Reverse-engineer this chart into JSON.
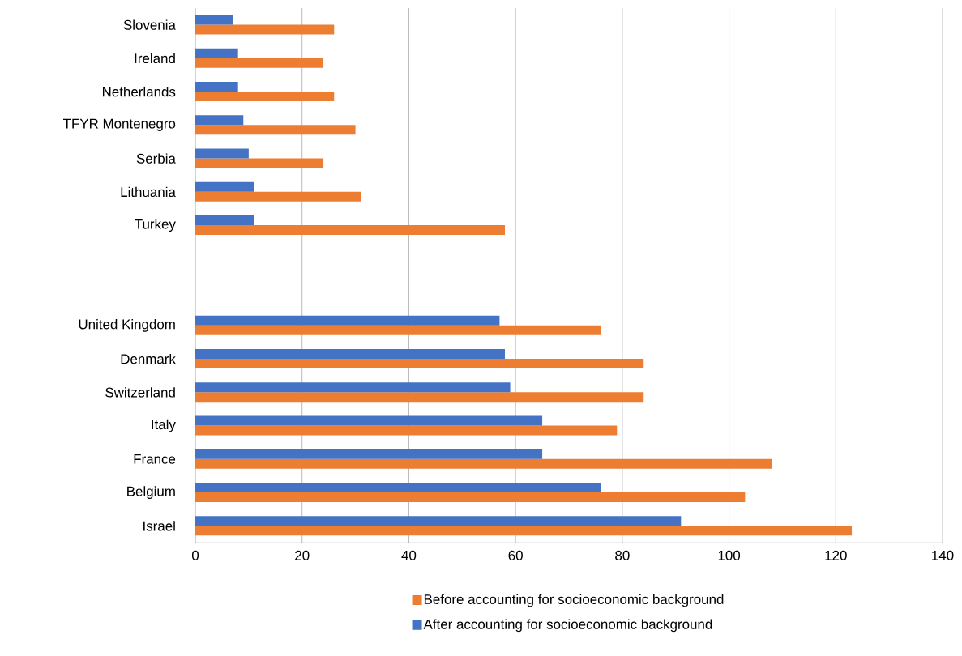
{
  "chart_data": {
    "type": "bar",
    "orientation": "horizontal",
    "categories": [
      "Slovenia",
      "Ireland",
      "Netherlands",
      "TFYR Montenegro",
      "Serbia",
      "Lithuania",
      "Turkey",
      null,
      null,
      "United Kingdom",
      "Denmark",
      "Switzerland",
      "Italy",
      "France",
      "Belgium",
      "Israel"
    ],
    "series": [
      {
        "name": "Before accounting for socioeconomic background",
        "color": "#ed7d31",
        "values": [
          26,
          24,
          26,
          30,
          24,
          31,
          58,
          null,
          null,
          76,
          84,
          84,
          79,
          108,
          103,
          123
        ]
      },
      {
        "name": "After accounting for socioeconomic background",
        "color": "#4472c4",
        "values": [
          7,
          8,
          8,
          9,
          10,
          11,
          11,
          null,
          null,
          57,
          58,
          59,
          65,
          65,
          76,
          91
        ]
      }
    ],
    "xlim": [
      0,
      140
    ],
    "xticks": [
      0,
      20,
      40,
      60,
      80,
      100,
      120,
      140
    ],
    "grid": "x",
    "legend": "bottom"
  }
}
